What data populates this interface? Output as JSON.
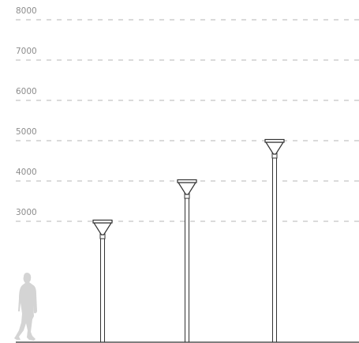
{
  "scale": {
    "unit": "mm",
    "levels": [
      {
        "value": 8000,
        "label": "8000"
      },
      {
        "value": 7000,
        "label": "7000"
      },
      {
        "value": 6000,
        "label": "6000"
      },
      {
        "value": 5000,
        "label": "5000"
      },
      {
        "value": 4000,
        "label": "4000"
      },
      {
        "value": 3000,
        "label": "3000"
      }
    ]
  },
  "poles": [
    {
      "name": "pole-3000",
      "height": 3000
    },
    {
      "name": "pole-4000",
      "height": 4000
    },
    {
      "name": "pole-5000",
      "height": 5000
    }
  ],
  "figure": {
    "name": "human-silhouette",
    "height": 1800
  },
  "colors": {
    "grid": "#b4b4b4",
    "label": "#8c8c8c",
    "line": "#333333",
    "ground": "#333333",
    "silhouette": "#d4d4d4"
  }
}
